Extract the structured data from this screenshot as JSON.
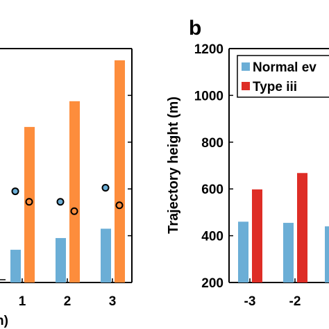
{
  "panel_label": "b",
  "chart_data": [
    {
      "type": "bar",
      "note": "left panel (partially cropped)",
      "x_ticks": [
        "1",
        "2",
        "3"
      ],
      "xlabel": "n)",
      "colors": {
        "blue": "#6baed6",
        "orange": "#fd8d3c"
      },
      "series": [
        {
          "color_key": "blue",
          "values": [
            340,
            390,
            430
          ]
        },
        {
          "color_key": "orange",
          "values": [
            865,
            975,
            1150
          ]
        }
      ],
      "scatter": [
        {
          "x": 1,
          "points": [
            {
              "y": 590,
              "fill": "#6baed6"
            },
            {
              "y": 545,
              "fill": "none"
            }
          ]
        },
        {
          "x": 2,
          "points": [
            {
              "y": 545,
              "fill": "#6baed6"
            },
            {
              "y": 505,
              "fill": "none"
            }
          ]
        },
        {
          "x": 3,
          "points": [
            {
              "y": 605,
              "fill": "#6baed6"
            },
            {
              "y": 530,
              "fill": "none"
            }
          ]
        }
      ],
      "ylim": [
        200,
        1200
      ]
    },
    {
      "type": "bar",
      "note": "right panel b (partially cropped)",
      "ylabel": "Trajectory height (m)",
      "ylim": [
        200,
        1200
      ],
      "y_ticks": [
        "200",
        "400",
        "600",
        "800",
        "1000",
        "1200"
      ],
      "x_ticks": [
        "-3",
        "-2"
      ],
      "categories": [
        "-3",
        "-2"
      ],
      "series": [
        {
          "name": "Normal ev",
          "color": "#6baed6",
          "values": [
            460,
            455
          ]
        },
        {
          "name": "Type iii",
          "color": "#de2d26",
          "values": [
            598,
            668
          ]
        }
      ],
      "legend_position": "top-right",
      "cut_series_value": 440
    }
  ]
}
